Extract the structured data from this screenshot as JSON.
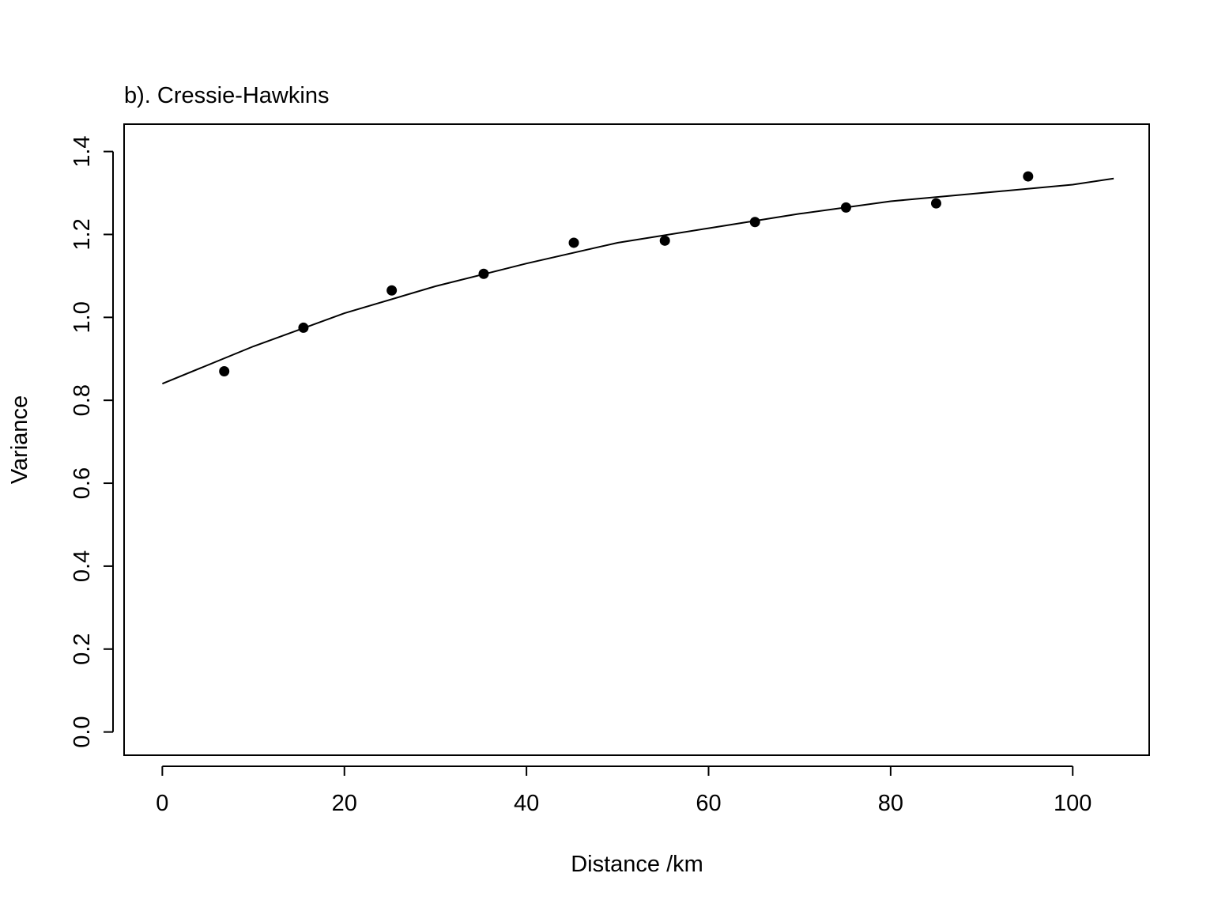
{
  "chart_data": {
    "type": "scatter",
    "title": "b). Cressie-Hawkins",
    "xlabel": "Distance /km",
    "ylabel": "Variance",
    "xlim": [
      -4.2,
      108.4
    ],
    "ylim": [
      -0.056,
      1.466
    ],
    "xticks": [
      0,
      20,
      40,
      60,
      80,
      100
    ],
    "xtick_labels": [
      "0",
      "20",
      "40",
      "60",
      "80",
      "100"
    ],
    "yticks": [
      0.0,
      0.2,
      0.4,
      0.6,
      0.8,
      1.0,
      1.2,
      1.4
    ],
    "ytick_labels": [
      "0.0",
      "0.2",
      "0.4",
      "0.6",
      "0.8",
      "1.0",
      "1.2",
      "1.4"
    ],
    "grid": false,
    "series": [
      {
        "kind": "points",
        "x": [
          6.8,
          15.5,
          25.2,
          35.3,
          45.2,
          55.2,
          65.1,
          75.1,
          85.0,
          95.1
        ],
        "y": [
          0.87,
          0.975,
          1.065,
          1.105,
          1.18,
          1.185,
          1.23,
          1.265,
          1.275,
          1.34
        ]
      },
      {
        "kind": "fitted-line",
        "x": [
          0,
          10,
          20,
          30,
          40,
          50,
          60,
          70,
          80,
          90,
          100,
          104.5
        ],
        "y": [
          0.84,
          0.93,
          1.01,
          1.075,
          1.13,
          1.18,
          1.215,
          1.25,
          1.28,
          1.3,
          1.32,
          1.335
        ]
      }
    ]
  }
}
